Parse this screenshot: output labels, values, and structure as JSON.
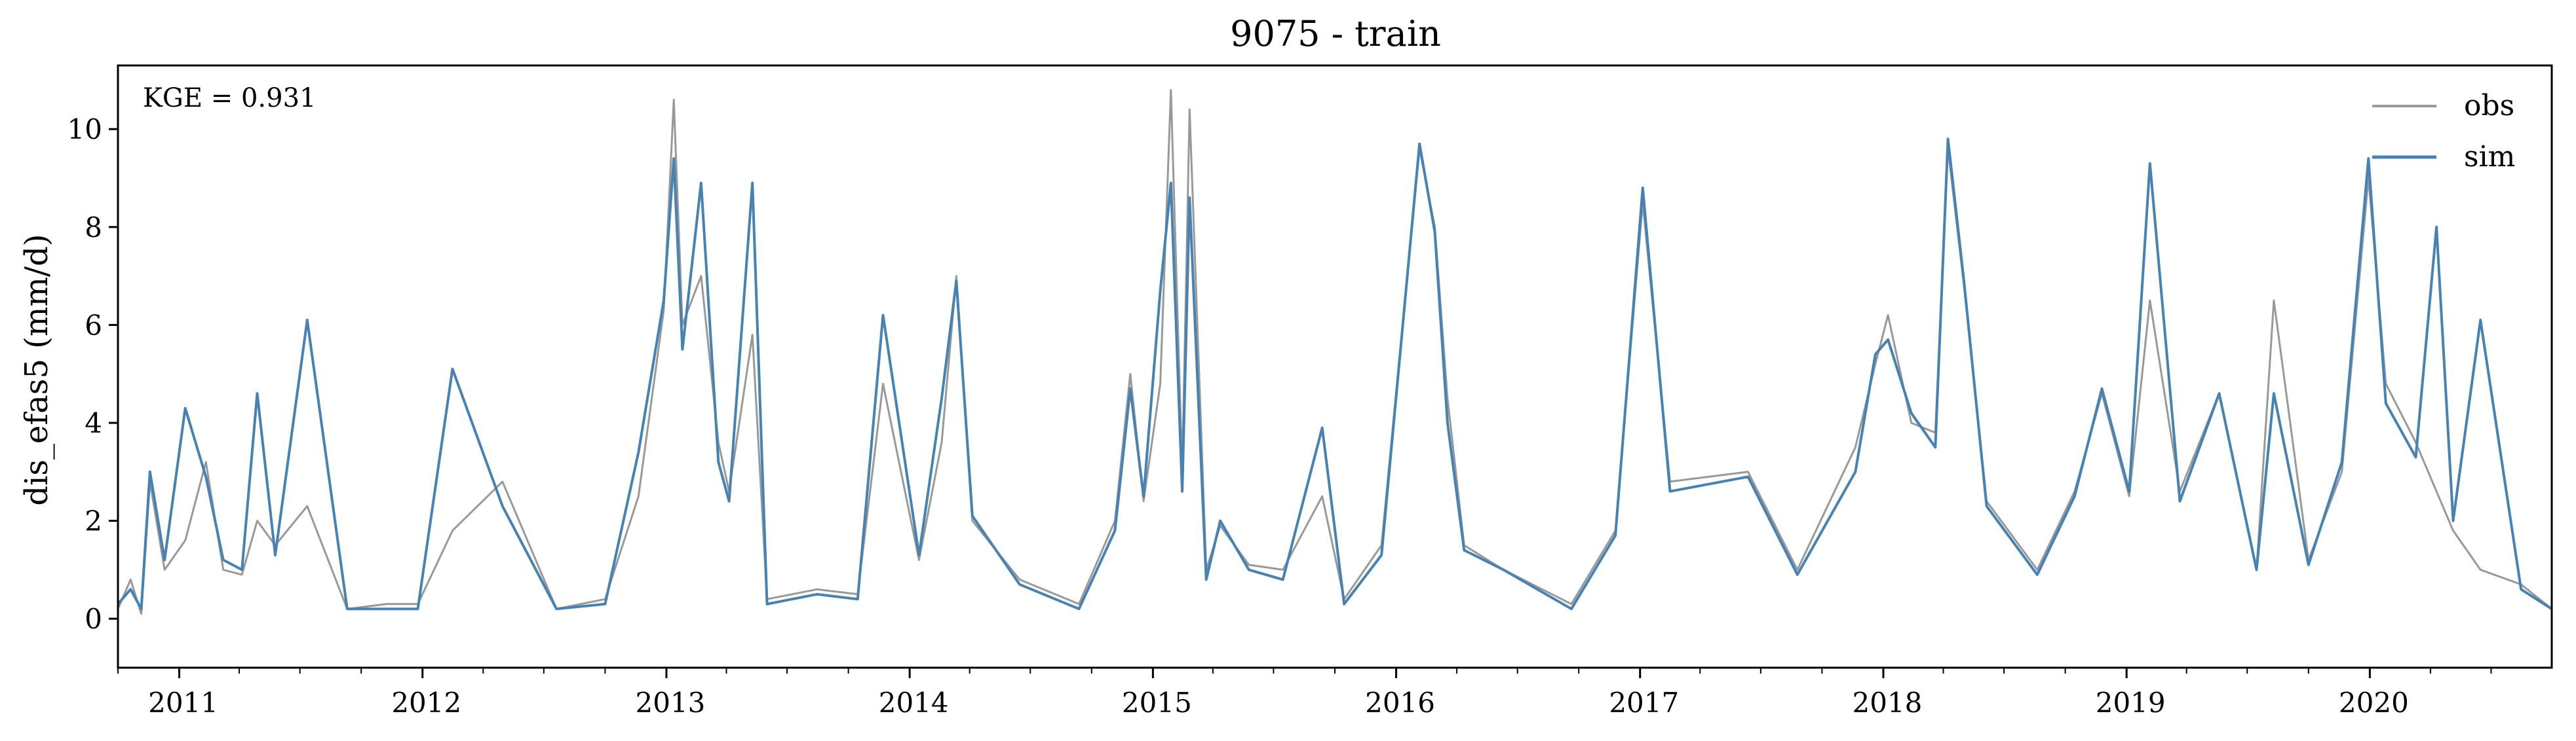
{
  "chart_data": {
    "type": "line",
    "title": "9075 - train",
    "ylabel": "dis_efas5 (mm/d)",
    "xlabel": "",
    "annotation": "KGE = 0.931",
    "xlim": [
      "2010-10-01",
      "2020-09-30"
    ],
    "ylim": [
      -1.0,
      11.3
    ],
    "yticks": [
      0,
      2,
      4,
      6,
      8,
      10
    ],
    "ytick_labels": [
      "0",
      "2",
      "4",
      "6",
      "8",
      "10"
    ],
    "xticks": [
      "2011-01-01",
      "2012-01-01",
      "2013-01-01",
      "2014-01-01",
      "2015-01-01",
      "2016-01-01",
      "2017-01-01",
      "2018-01-01",
      "2019-01-01",
      "2020-01-01"
    ],
    "xtick_labels": [
      "2011",
      "2012",
      "2013",
      "2014",
      "2015",
      "2016",
      "2017",
      "2018",
      "2019",
      "2020"
    ],
    "legend_position": "top-right",
    "grid": false,
    "series": [
      {
        "name": "obs",
        "color": "#999999",
        "x": [
          "2010-10-01",
          "2010-10-20",
          "2010-11-05",
          "2010-11-18",
          "2010-12-10",
          "2011-01-10",
          "2011-02-10",
          "2011-03-08",
          "2011-04-05",
          "2011-04-28",
          "2011-05-25",
          "2011-07-12",
          "2011-09-10",
          "2011-11-08",
          "2011-12-25",
          "2012-02-15",
          "2012-04-30",
          "2012-07-20",
          "2012-10-01",
          "2012-11-20",
          "2012-12-28",
          "2013-01-12",
          "2013-01-25",
          "2013-02-22",
          "2013-03-20",
          "2013-04-05",
          "2013-05-10",
          "2013-06-01",
          "2013-08-15",
          "2013-10-15",
          "2013-11-22",
          "2014-01-15",
          "2014-02-18",
          "2014-03-12",
          "2014-04-05",
          "2014-06-15",
          "2014-09-12",
          "2014-11-05",
          "2014-11-28",
          "2014-12-18",
          "2015-01-12",
          "2015-01-28",
          "2015-02-14",
          "2015-02-25",
          "2015-03-22",
          "2015-04-12",
          "2015-05-25",
          "2015-07-15",
          "2015-09-12",
          "2015-10-15",
          "2015-12-10",
          "2016-02-05",
          "2016-02-28",
          "2016-03-18",
          "2016-04-12",
          "2016-06-10",
          "2016-09-20",
          "2016-11-25",
          "2017-01-05",
          "2017-02-15",
          "2017-06-12",
          "2017-08-25",
          "2017-11-20",
          "2017-12-20",
          "2018-01-08",
          "2018-02-12",
          "2018-03-20",
          "2018-04-08",
          "2018-05-02",
          "2018-06-05",
          "2018-08-20",
          "2018-10-15",
          "2018-11-25",
          "2019-01-05",
          "2019-02-05",
          "2019-03-22",
          "2019-05-20",
          "2019-07-15",
          "2019-08-10",
          "2019-10-01",
          "2019-11-20",
          "2019-12-30",
          "2020-01-25",
          "2020-03-10",
          "2020-04-10",
          "2020-05-05",
          "2020-06-15",
          "2020-08-15",
          "2020-09-30"
        ],
        "values": [
          0.2,
          0.8,
          0.1,
          2.8,
          1.0,
          1.6,
          3.2,
          1.0,
          0.9,
          2.0,
          1.5,
          2.3,
          0.2,
          0.3,
          0.3,
          1.8,
          2.8,
          0.2,
          0.4,
          2.5,
          6.3,
          10.6,
          6.0,
          7.0,
          3.6,
          2.6,
          5.8,
          0.4,
          0.6,
          0.5,
          4.8,
          1.2,
          3.6,
          7.0,
          2.0,
          0.8,
          0.3,
          2.0,
          5.0,
          2.4,
          4.8,
          10.8,
          3.0,
          10.4,
          1.0,
          1.9,
          1.1,
          1.0,
          2.5,
          0.4,
          1.5,
          9.6,
          8.0,
          4.5,
          1.5,
          1.0,
          0.3,
          1.8,
          8.5,
          2.8,
          3.0,
          1.0,
          3.5,
          5.2,
          6.2,
          4.0,
          3.8,
          9.6,
          6.8,
          2.4,
          1.0,
          2.6,
          4.6,
          2.5,
          6.5,
          2.6,
          4.6,
          1.0,
          6.5,
          1.2,
          3.0,
          9.0,
          4.8,
          3.6,
          2.6,
          1.8,
          1.0,
          0.7,
          0.2
        ]
      },
      {
        "name": "sim",
        "color": "#4682b4",
        "x": [
          "2010-10-01",
          "2010-10-20",
          "2010-11-05",
          "2010-11-18",
          "2010-12-10",
          "2011-01-10",
          "2011-02-10",
          "2011-03-08",
          "2011-04-05",
          "2011-04-28",
          "2011-05-25",
          "2011-07-12",
          "2011-09-10",
          "2011-11-08",
          "2011-12-25",
          "2012-02-15",
          "2012-04-30",
          "2012-07-20",
          "2012-10-01",
          "2012-11-20",
          "2012-12-28",
          "2013-01-12",
          "2013-01-25",
          "2013-02-22",
          "2013-03-20",
          "2013-04-05",
          "2013-05-10",
          "2013-06-01",
          "2013-08-15",
          "2013-10-15",
          "2013-11-22",
          "2014-01-15",
          "2014-02-18",
          "2014-03-12",
          "2014-04-05",
          "2014-06-15",
          "2014-09-12",
          "2014-11-05",
          "2014-11-28",
          "2014-12-18",
          "2015-01-12",
          "2015-01-28",
          "2015-02-14",
          "2015-02-25",
          "2015-03-22",
          "2015-04-12",
          "2015-05-25",
          "2015-07-15",
          "2015-09-12",
          "2015-10-15",
          "2015-12-10",
          "2016-02-05",
          "2016-02-28",
          "2016-03-18",
          "2016-04-12",
          "2016-06-10",
          "2016-09-20",
          "2016-11-25",
          "2017-01-05",
          "2017-02-15",
          "2017-06-12",
          "2017-08-25",
          "2017-11-20",
          "2017-12-20",
          "2018-01-08",
          "2018-02-12",
          "2018-03-20",
          "2018-04-08",
          "2018-05-02",
          "2018-06-05",
          "2018-08-20",
          "2018-10-15",
          "2018-11-25",
          "2019-01-05",
          "2019-02-05",
          "2019-03-22",
          "2019-05-20",
          "2019-07-15",
          "2019-08-10",
          "2019-10-01",
          "2019-11-20",
          "2019-12-30",
          "2020-01-25",
          "2020-03-10",
          "2020-04-10",
          "2020-05-05",
          "2020-06-15",
          "2020-08-15",
          "2020-09-30"
        ],
        "values": [
          0.3,
          0.6,
          0.2,
          3.0,
          1.2,
          4.3,
          2.9,
          1.2,
          1.0,
          4.6,
          1.3,
          6.1,
          0.2,
          0.2,
          0.2,
          5.1,
          2.3,
          0.2,
          0.3,
          3.4,
          6.5,
          9.4,
          5.5,
          8.9,
          3.2,
          2.4,
          8.9,
          0.3,
          0.5,
          0.4,
          6.2,
          1.3,
          4.5,
          6.9,
          2.1,
          0.7,
          0.2,
          1.8,
          4.7,
          2.5,
          6.7,
          8.9,
          2.6,
          8.6,
          0.8,
          2.0,
          1.0,
          0.8,
          3.9,
          0.3,
          1.3,
          9.7,
          7.9,
          4.0,
          1.4,
          1.0,
          0.2,
          1.7,
          8.8,
          2.6,
          2.9,
          0.9,
          3.0,
          5.4,
          5.7,
          4.2,
          3.5,
          9.8,
          6.9,
          2.3,
          0.9,
          2.5,
          4.7,
          2.6,
          9.3,
          2.4,
          4.6,
          1.0,
          4.6,
          1.1,
          3.2,
          9.4,
          4.4,
          3.3,
          8.0,
          2.0,
          6.1,
          0.6,
          0.2
        ]
      }
    ]
  }
}
